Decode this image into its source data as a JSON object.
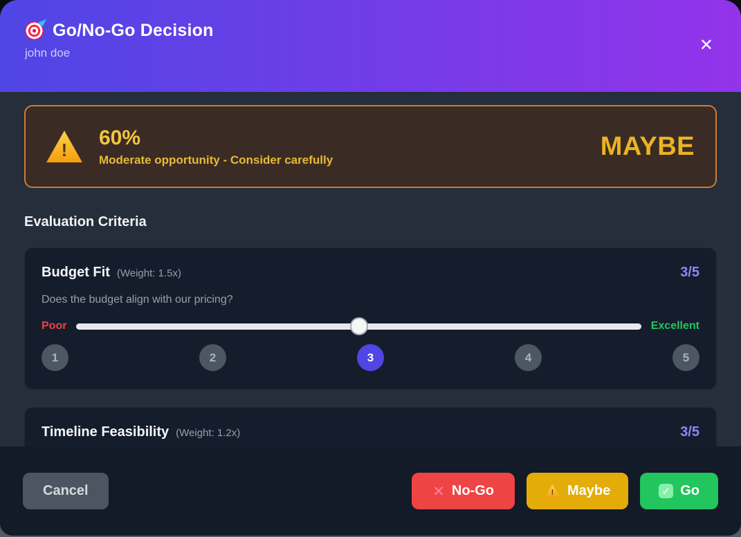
{
  "header": {
    "title": "Go/No-Go Decision",
    "subtitle": "john doe",
    "close_glyph": "✕",
    "icon": "target-icon",
    "gradient_start": "#4f46e5",
    "gradient_end": "#9333ea"
  },
  "banner": {
    "icon": "warning-triangle-icon",
    "score_percent": "60%",
    "message": "Moderate opportunity - Consider carefully",
    "verdict": "MAYBE",
    "text_color": "#edb323",
    "border_color": "#cf7d2e",
    "background": "#3a2c25"
  },
  "section": {
    "title": "Evaluation Criteria"
  },
  "criteria": [
    {
      "name": "Budget Fit",
      "weight": "(Weight: 1.5x)",
      "score": "3/5",
      "question": "Does the budget align with our pricing?",
      "min_label": "Poor",
      "max_label": "Excellent",
      "selected_value": "3",
      "slider_percent": 50,
      "options": [
        "1",
        "2",
        "3",
        "4",
        "5"
      ]
    },
    {
      "name": "Timeline Feasibility",
      "weight": "(Weight: 1.2x)",
      "score": "3/5"
    }
  ],
  "footer": {
    "cancel_label": "Cancel",
    "nogo_label": "No-Go",
    "maybe_label": "Maybe",
    "go_label": "Go",
    "nogo_color": "#ef4444",
    "maybe_color": "#e3ac09",
    "go_color": "#22c55e"
  },
  "colors": {
    "body_background": "#262d3b",
    "card_background": "#151c2c",
    "footer_background": "#131a28",
    "score_accent": "#8a8bf7",
    "selected_circle": "#4f46e5",
    "poor_red": "#ef4444",
    "excellent_green": "#22c55e"
  }
}
